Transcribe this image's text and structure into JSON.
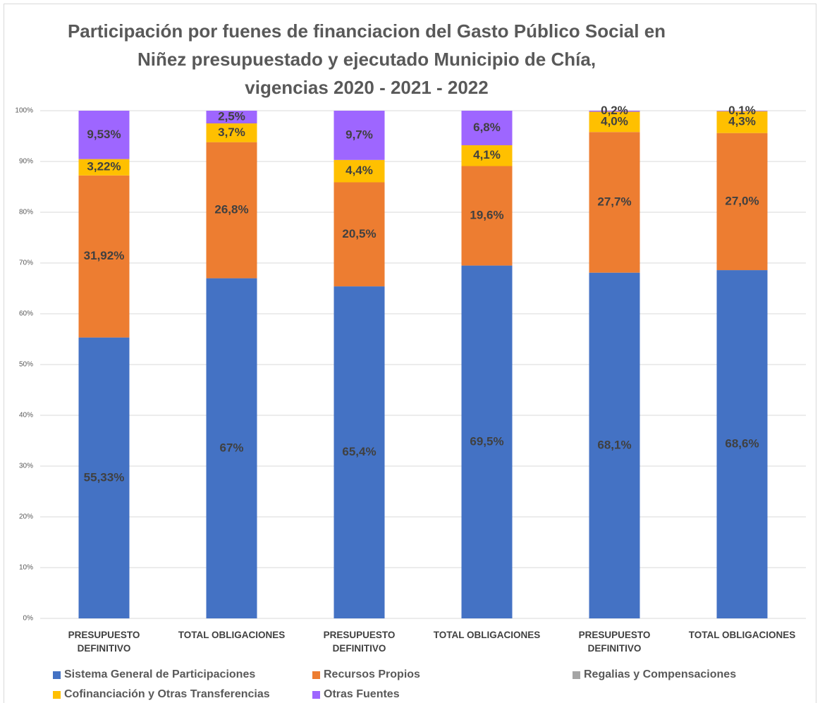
{
  "chart_data": {
    "type": "stacked_bar",
    "title": [
      "Participación por fuenes de financiacion del Gasto Público Social en",
      "Niñez presupuestado y ejecutado Municipio de Chía,",
      "vigencias 2020 - 2021 - 2022"
    ],
    "categories": [
      "PRESUPUESTO DEFINITIVO",
      "TOTAL OBLIGACIONES",
      "PRESUPUESTO DEFINITIVO",
      "TOTAL OBLIGACIONES",
      "PRESUPUESTO DEFINITIVO",
      "TOTAL OBLIGACIONES"
    ],
    "series": [
      {
        "name": "Sistema General de Participaciones",
        "color": "#4472c4",
        "values": [
          55.33,
          67,
          65.4,
          69.5,
          68.1,
          68.6
        ],
        "value_labels": [
          "55,33%",
          "67%",
          "65,4%",
          "69,5%",
          "68,1%",
          "68,6%"
        ]
      },
      {
        "name": "Recursos Propios",
        "color": "#ed7d31",
        "values": [
          31.92,
          26.8,
          20.5,
          19.6,
          27.7,
          27.0
        ],
        "value_labels": [
          "31,92%",
          "26,8%",
          "20,5%",
          "19,6%",
          "27,7%",
          "27,0%"
        ]
      },
      {
        "name": "Regalias y Compensaciones",
        "color": "#a5a5a5",
        "values": [
          0,
          0,
          0,
          0,
          0,
          0
        ]
      },
      {
        "name": "Cofinanciación y Otras Transferencias",
        "color": "#ffc000",
        "values": [
          3.22,
          3.7,
          4.4,
          4.1,
          4.0,
          4.3
        ],
        "value_labels": [
          "3,22%",
          "3,7%",
          "4,4%",
          "4,1%",
          "4,0%",
          "4,3%"
        ]
      },
      {
        "name": "Otras Fuentes",
        "color": "#9e66ff",
        "values": [
          9.53,
          2.5,
          9.7,
          6.8,
          0.2,
          0.1
        ],
        "value_labels": [
          "9,53%",
          "2,5%",
          "9,7%",
          "6,8%",
          "0,2%",
          "0,1%"
        ]
      }
    ],
    "ylim": [
      0,
      100
    ],
    "yticks": [
      {
        "value": 0,
        "label": "0%"
      },
      {
        "value": 10,
        "label": "10%"
      },
      {
        "value": 20,
        "label": "20%"
      },
      {
        "value": 30,
        "label": "30%"
      },
      {
        "value": 40,
        "label": "40%"
      },
      {
        "value": 50,
        "label": "50%"
      },
      {
        "value": 60,
        "label": "60%"
      },
      {
        "value": 70,
        "label": "70%"
      },
      {
        "value": 80,
        "label": "80%"
      },
      {
        "value": 90,
        "label": "90%"
      },
      {
        "value": 100,
        "label": "100%"
      }
    ],
    "grid": true
  }
}
